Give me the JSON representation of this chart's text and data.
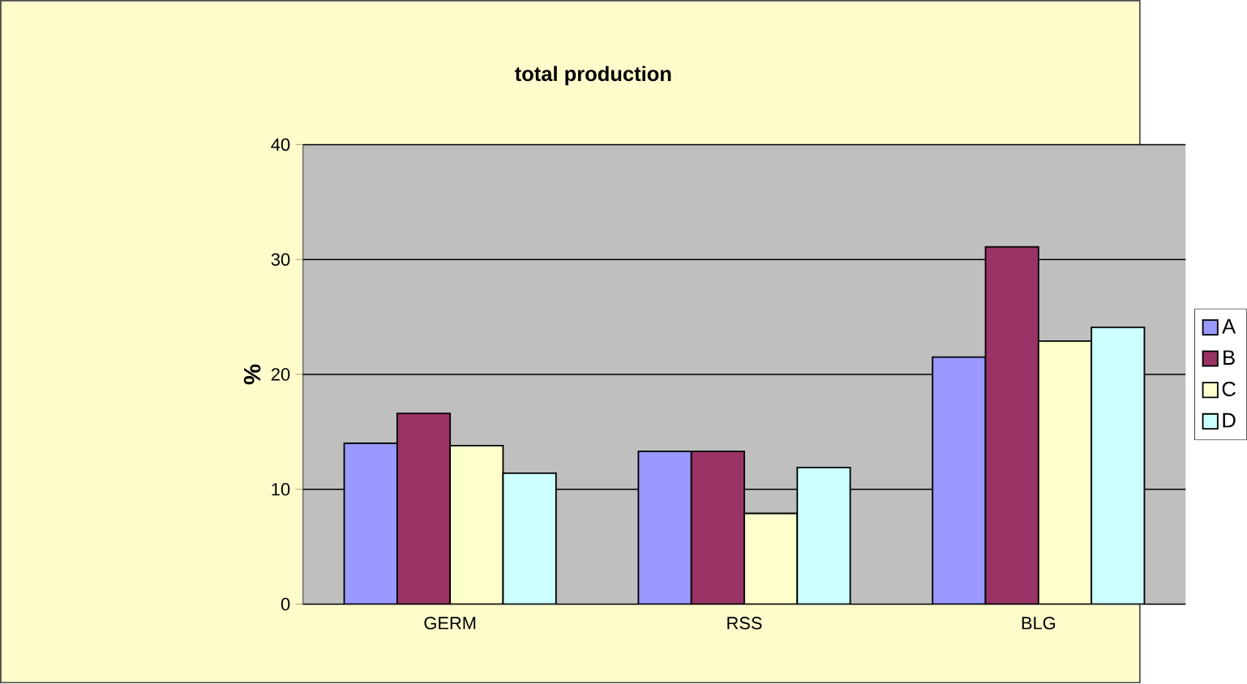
{
  "chart_data": {
    "type": "bar",
    "title": "total production",
    "ylabel": "%",
    "categories": [
      "GERM",
      "RSS",
      "BLG"
    ],
    "series": [
      {
        "name": "A",
        "color": "#9999ff",
        "values": [
          14.0,
          13.3,
          21.5
        ]
      },
      {
        "name": "B",
        "color": "#993366",
        "values": [
          16.6,
          13.3,
          31.1
        ]
      },
      {
        "name": "C",
        "color": "#ffffcc",
        "values": [
          13.8,
          7.9,
          22.9
        ]
      },
      {
        "name": "D",
        "color": "#ccffff",
        "values": [
          11.4,
          11.9,
          24.1
        ]
      }
    ],
    "ylim": [
      0,
      40
    ],
    "yticks": [
      0,
      10,
      20,
      30,
      40
    ],
    "grid": "y",
    "legend": "right"
  }
}
